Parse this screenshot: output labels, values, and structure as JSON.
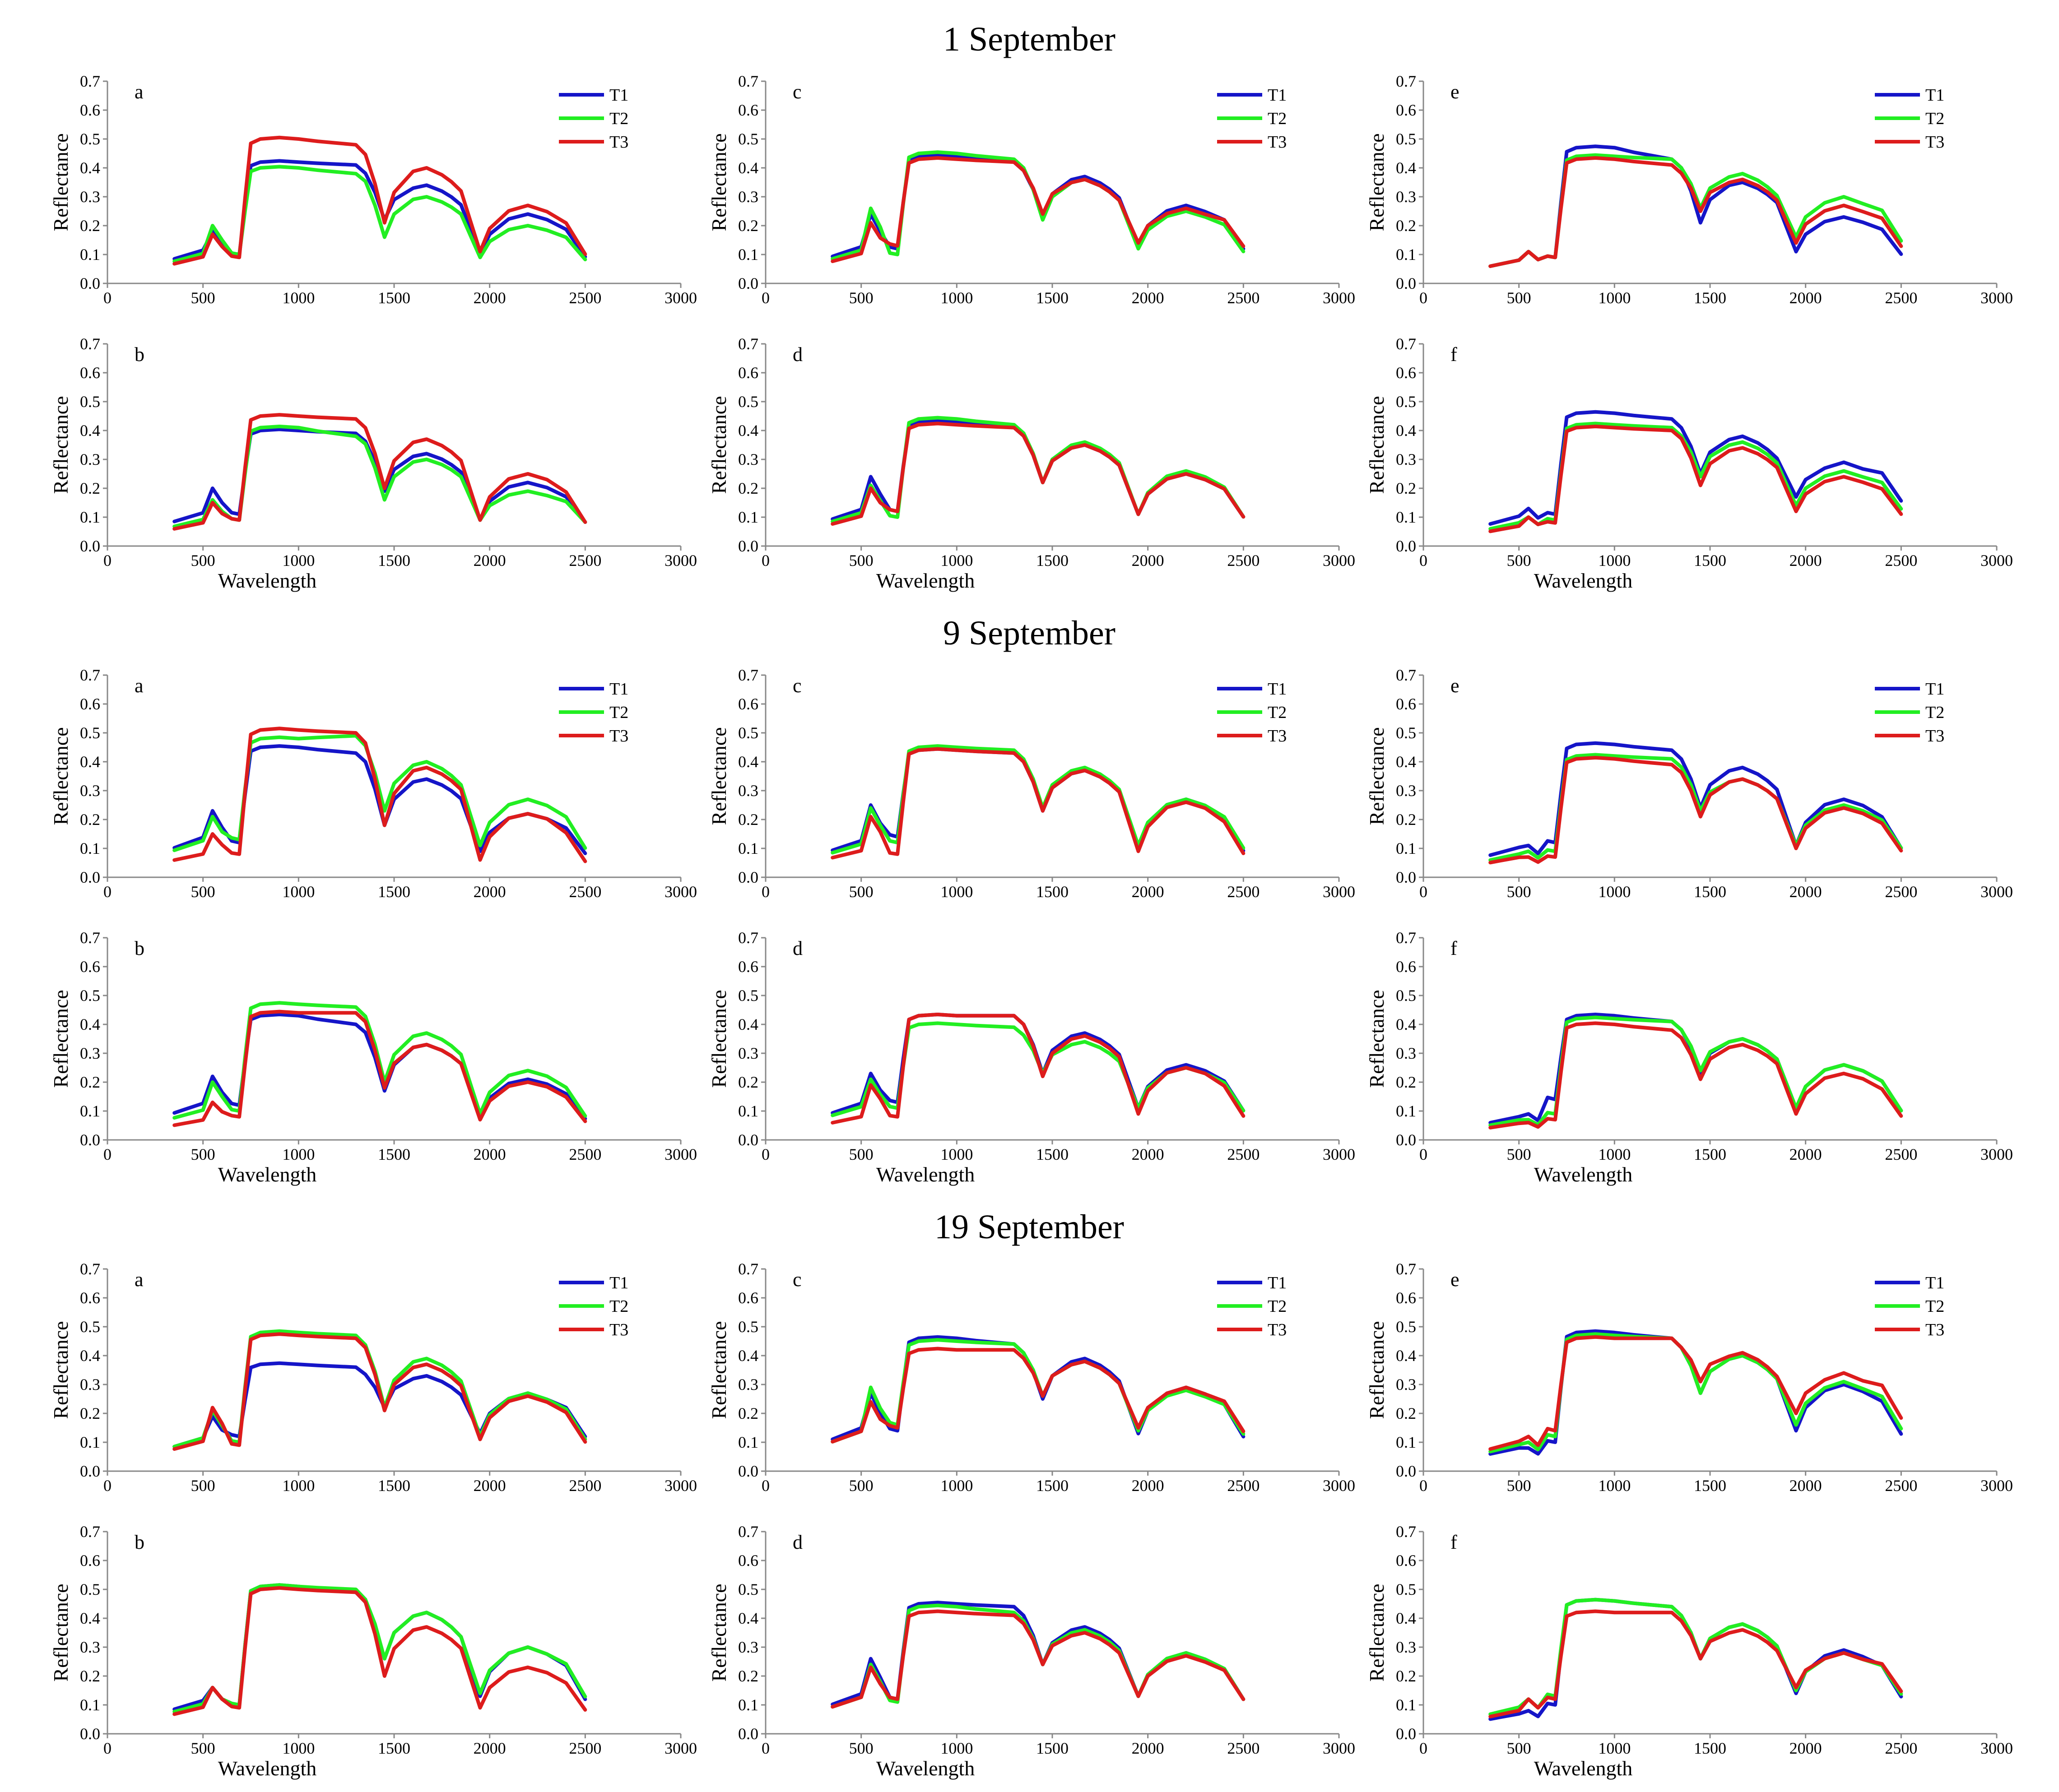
{
  "figure": {
    "groups": [
      {
        "title": "1 September"
      },
      {
        "title": "9 September"
      },
      {
        "title": "19 September"
      }
    ],
    "panel_letters_left_column": [
      "a",
      "b"
    ],
    "panel_letters_middle_column": [
      "c",
      "d"
    ],
    "panel_letters_right_column": [
      "e",
      "f"
    ],
    "legend": [
      "T1",
      "T2",
      "T3"
    ]
  },
  "colors": {
    "T1": "#1515c8",
    "T2": "#22ee22",
    "T3": "#dd1c1c",
    "axis": "#888888"
  },
  "chart_data": {
    "type": "line",
    "series_names": [
      "T1",
      "T2",
      "T3"
    ],
    "x": [
      350,
      400,
      500,
      550,
      600,
      650,
      690,
      720,
      750,
      800,
      900,
      1000,
      1100,
      1200,
      1300,
      1350,
      1400,
      1450,
      1500,
      1600,
      1670,
      1750,
      1800,
      1850,
      1900,
      1950,
      2000,
      2100,
      2200,
      2300,
      2400,
      2500
    ],
    "xlabel": "Wavelength",
    "ylabel": "Reflectance",
    "xlim": [
      0,
      3000
    ],
    "ylim": [
      0,
      0.7
    ],
    "xticks": [
      0,
      500,
      1000,
      1500,
      2000,
      2500,
      3000
    ],
    "yticks": [
      0.0,
      0.1,
      0.2,
      0.3,
      0.4,
      0.5,
      0.6,
      0.7
    ],
    "xtick_labels": [
      "0",
      "500",
      "1000",
      "1500",
      "2000",
      "2500",
      "3000"
    ],
    "ytick_labels": [
      "0.0",
      "0.1",
      "0.2",
      "0.3",
      "0.4",
      "0.5",
      "0.6",
      "0.7"
    ],
    "panels": [
      {
        "group": "1 September",
        "label": "a",
        "series": [
          {
            "name": "T1",
            "vis": 0.1,
            "green": 0.18,
            "red": 0.1,
            "nir": 0.42,
            "nir_end": 0.41,
            "swir1": 0.34,
            "swir2": 0.24,
            "dip1": 0.22,
            "dip2": 0.1
          },
          {
            "name": "T2",
            "vis": 0.09,
            "green": 0.2,
            "red": 0.1,
            "nir": 0.4,
            "nir_end": 0.38,
            "swir1": 0.3,
            "swir2": 0.2,
            "dip1": 0.16,
            "dip2": 0.09
          },
          {
            "name": "T3",
            "vis": 0.08,
            "green": 0.17,
            "red": 0.09,
            "nir": 0.5,
            "nir_end": 0.48,
            "swir1": 0.4,
            "swir2": 0.27,
            "dip1": 0.21,
            "dip2": 0.11
          }
        ]
      },
      {
        "group": "1 September",
        "label": "b",
        "series": [
          {
            "name": "T1",
            "vis": 0.1,
            "green": 0.2,
            "red": 0.11,
            "nir": 0.4,
            "nir_end": 0.39,
            "swir1": 0.32,
            "swir2": 0.22,
            "dip1": 0.19,
            "dip2": 0.09
          },
          {
            "name": "T2",
            "vis": 0.08,
            "green": 0.16,
            "red": 0.09,
            "nir": 0.41,
            "nir_end": 0.38,
            "swir1": 0.3,
            "swir2": 0.19,
            "dip1": 0.16,
            "dip2": 0.09
          },
          {
            "name": "T3",
            "vis": 0.07,
            "green": 0.15,
            "red": 0.09,
            "nir": 0.45,
            "nir_end": 0.44,
            "swir1": 0.37,
            "swir2": 0.25,
            "dip1": 0.2,
            "dip2": 0.09
          }
        ]
      },
      {
        "group": "1 September",
        "label": "c",
        "series": [
          {
            "name": "T1",
            "vis": 0.11,
            "green": 0.24,
            "red": 0.12,
            "nir": 0.44,
            "nir_end": 0.42,
            "swir1": 0.37,
            "swir2": 0.27,
            "dip1": 0.23,
            "dip2": 0.13
          },
          {
            "name": "T2",
            "vis": 0.1,
            "green": 0.26,
            "red": 0.1,
            "nir": 0.45,
            "nir_end": 0.43,
            "swir1": 0.36,
            "swir2": 0.25,
            "dip1": 0.22,
            "dip2": 0.12
          },
          {
            "name": "T3",
            "vis": 0.09,
            "green": 0.21,
            "red": 0.13,
            "nir": 0.43,
            "nir_end": 0.42,
            "swir1": 0.36,
            "swir2": 0.26,
            "dip1": 0.24,
            "dip2": 0.14
          }
        ]
      },
      {
        "group": "1 September",
        "label": "d",
        "series": [
          {
            "name": "T1",
            "vis": 0.11,
            "green": 0.24,
            "red": 0.12,
            "nir": 0.43,
            "nir_end": 0.41,
            "swir1": 0.35,
            "swir2": 0.25,
            "dip1": 0.22,
            "dip2": 0.11
          },
          {
            "name": "T2",
            "vis": 0.1,
            "green": 0.21,
            "red": 0.1,
            "nir": 0.44,
            "nir_end": 0.42,
            "swir1": 0.36,
            "swir2": 0.26,
            "dip1": 0.22,
            "dip2": 0.11
          },
          {
            "name": "T3",
            "vis": 0.09,
            "green": 0.2,
            "red": 0.12,
            "nir": 0.42,
            "nir_end": 0.41,
            "swir1": 0.35,
            "swir2": 0.25,
            "dip1": 0.22,
            "dip2": 0.11
          }
        ]
      },
      {
        "group": "1 September",
        "label": "e",
        "series": [
          {
            "name": "T1",
            "vis": 0.07,
            "green": 0.11,
            "red": 0.09,
            "nir": 0.47,
            "nir_end": 0.43,
            "swir1": 0.35,
            "swir2": 0.23,
            "dip1": 0.21,
            "dip2": 0.11
          },
          {
            "name": "T2",
            "vis": 0.07,
            "green": 0.11,
            "red": 0.09,
            "nir": 0.44,
            "nir_end": 0.43,
            "swir1": 0.38,
            "swir2": 0.3,
            "dip1": 0.26,
            "dip2": 0.16
          },
          {
            "name": "T3",
            "vis": 0.07,
            "green": 0.11,
            "red": 0.09,
            "nir": 0.43,
            "nir_end": 0.41,
            "swir1": 0.36,
            "swir2": 0.27,
            "dip1": 0.25,
            "dip2": 0.14
          }
        ]
      },
      {
        "group": "1 September",
        "label": "f",
        "series": [
          {
            "name": "T1",
            "vis": 0.09,
            "green": 0.13,
            "red": 0.11,
            "nir": 0.46,
            "nir_end": 0.44,
            "swir1": 0.38,
            "swir2": 0.29,
            "dip1": 0.25,
            "dip2": 0.17
          },
          {
            "name": "T2",
            "vis": 0.07,
            "green": 0.1,
            "red": 0.09,
            "nir": 0.42,
            "nir_end": 0.41,
            "swir1": 0.36,
            "swir2": 0.26,
            "dip1": 0.24,
            "dip2": 0.14
          },
          {
            "name": "T3",
            "vis": 0.06,
            "green": 0.1,
            "red": 0.08,
            "nir": 0.41,
            "nir_end": 0.4,
            "swir1": 0.34,
            "swir2": 0.24,
            "dip1": 0.21,
            "dip2": 0.12
          }
        ]
      },
      {
        "group": "9 September",
        "label": "a",
        "series": [
          {
            "name": "T1",
            "vis": 0.12,
            "green": 0.23,
            "red": 0.12,
            "nir": 0.45,
            "nir_end": 0.43,
            "swir1": 0.34,
            "swir2": 0.22,
            "dip1": 0.18,
            "dip2": 0.09
          },
          {
            "name": "T2",
            "vis": 0.11,
            "green": 0.21,
            "red": 0.13,
            "nir": 0.48,
            "nir_end": 0.49,
            "swir1": 0.4,
            "swir2": 0.27,
            "dip1": 0.23,
            "dip2": 0.11
          },
          {
            "name": "T3",
            "vis": 0.07,
            "green": 0.15,
            "red": 0.08,
            "nir": 0.51,
            "nir_end": 0.5,
            "swir1": 0.38,
            "swir2": 0.22,
            "dip1": 0.18,
            "dip2": 0.06
          }
        ]
      },
      {
        "group": "9 September",
        "label": "b",
        "series": [
          {
            "name": "T1",
            "vis": 0.11,
            "green": 0.22,
            "red": 0.12,
            "nir": 0.43,
            "nir_end": 0.4,
            "swir1": 0.33,
            "swir2": 0.21,
            "dip1": 0.17,
            "dip2": 0.08
          },
          {
            "name": "T2",
            "vis": 0.09,
            "green": 0.2,
            "red": 0.1,
            "nir": 0.47,
            "nir_end": 0.46,
            "swir1": 0.37,
            "swir2": 0.24,
            "dip1": 0.2,
            "dip2": 0.09
          },
          {
            "name": "T3",
            "vis": 0.06,
            "green": 0.13,
            "red": 0.08,
            "nir": 0.44,
            "nir_end": 0.44,
            "swir1": 0.33,
            "swir2": 0.2,
            "dip1": 0.18,
            "dip2": 0.07
          }
        ]
      },
      {
        "group": "9 September",
        "label": "c",
        "series": [
          {
            "name": "T1",
            "vis": 0.11,
            "green": 0.25,
            "red": 0.14,
            "nir": 0.44,
            "nir_end": 0.43,
            "swir1": 0.37,
            "swir2": 0.27,
            "dip1": 0.23,
            "dip2": 0.1
          },
          {
            "name": "T2",
            "vis": 0.1,
            "green": 0.24,
            "red": 0.12,
            "nir": 0.45,
            "nir_end": 0.44,
            "swir1": 0.38,
            "swir2": 0.27,
            "dip1": 0.24,
            "dip2": 0.11
          },
          {
            "name": "T3",
            "vis": 0.08,
            "green": 0.21,
            "red": 0.08,
            "nir": 0.44,
            "nir_end": 0.43,
            "swir1": 0.37,
            "swir2": 0.26,
            "dip1": 0.23,
            "dip2": 0.09
          }
        ]
      },
      {
        "group": "9 September",
        "label": "d",
        "series": [
          {
            "name": "T1",
            "vis": 0.11,
            "green": 0.23,
            "red": 0.13,
            "nir": 0.43,
            "nir_end": 0.43,
            "swir1": 0.37,
            "swir2": 0.26,
            "dip1": 0.23,
            "dip2": 0.11
          },
          {
            "name": "T2",
            "vis": 0.1,
            "green": 0.21,
            "red": 0.11,
            "nir": 0.4,
            "nir_end": 0.39,
            "swir1": 0.34,
            "swir2": 0.25,
            "dip1": 0.23,
            "dip2": 0.11
          },
          {
            "name": "T3",
            "vis": 0.07,
            "green": 0.19,
            "red": 0.08,
            "nir": 0.43,
            "nir_end": 0.43,
            "swir1": 0.36,
            "swir2": 0.25,
            "dip1": 0.22,
            "dip2": 0.09
          }
        ]
      },
      {
        "group": "9 September",
        "label": "e",
        "series": [
          {
            "name": "T1",
            "vis": 0.09,
            "green": 0.11,
            "red": 0.12,
            "nir": 0.46,
            "nir_end": 0.44,
            "swir1": 0.38,
            "swir2": 0.27,
            "dip1": 0.24,
            "dip2": 0.11
          },
          {
            "name": "T2",
            "vis": 0.07,
            "green": 0.09,
            "red": 0.09,
            "nir": 0.42,
            "nir_end": 0.41,
            "swir1": 0.34,
            "swir2": 0.25,
            "dip1": 0.23,
            "dip2": 0.11
          },
          {
            "name": "T3",
            "vis": 0.06,
            "green": 0.07,
            "red": 0.07,
            "nir": 0.41,
            "nir_end": 0.39,
            "swir1": 0.34,
            "swir2": 0.24,
            "dip1": 0.21,
            "dip2": 0.1
          }
        ]
      },
      {
        "group": "9 September",
        "label": "f",
        "series": [
          {
            "name": "T1",
            "vis": 0.07,
            "green": 0.09,
            "red": 0.14,
            "nir": 0.43,
            "nir_end": 0.41,
            "swir1": 0.35,
            "swir2": 0.26,
            "dip1": 0.23,
            "dip2": 0.11
          },
          {
            "name": "T2",
            "vis": 0.06,
            "green": 0.07,
            "red": 0.09,
            "nir": 0.42,
            "nir_end": 0.41,
            "swir1": 0.35,
            "swir2": 0.26,
            "dip1": 0.24,
            "dip2": 0.11
          },
          {
            "name": "T3",
            "vis": 0.05,
            "green": 0.06,
            "red": 0.07,
            "nir": 0.4,
            "nir_end": 0.38,
            "swir1": 0.33,
            "swir2": 0.23,
            "dip1": 0.21,
            "dip2": 0.09
          }
        ]
      },
      {
        "group": "19 September",
        "label": "a",
        "series": [
          {
            "name": "T1",
            "vis": 0.1,
            "green": 0.19,
            "red": 0.12,
            "nir": 0.37,
            "nir_end": 0.36,
            "swir1": 0.33,
            "swir2": 0.27,
            "dip1": 0.22,
            "dip2": 0.13
          },
          {
            "name": "T2",
            "vis": 0.1,
            "green": 0.21,
            "red": 0.1,
            "nir": 0.48,
            "nir_end": 0.47,
            "swir1": 0.39,
            "swir2": 0.27,
            "dip1": 0.22,
            "dip2": 0.12
          },
          {
            "name": "T3",
            "vis": 0.09,
            "green": 0.22,
            "red": 0.09,
            "nir": 0.47,
            "nir_end": 0.46,
            "swir1": 0.37,
            "swir2": 0.26,
            "dip1": 0.21,
            "dip2": 0.11
          }
        ]
      },
      {
        "group": "19 September",
        "label": "b",
        "series": [
          {
            "name": "T1",
            "vis": 0.1,
            "green": 0.16,
            "red": 0.1,
            "nir": 0.51,
            "nir_end": 0.49,
            "swir1": 0.42,
            "swir2": 0.3,
            "dip1": 0.26,
            "dip2": 0.13
          },
          {
            "name": "T2",
            "vis": 0.09,
            "green": 0.16,
            "red": 0.1,
            "nir": 0.51,
            "nir_end": 0.5,
            "swir1": 0.42,
            "swir2": 0.3,
            "dip1": 0.26,
            "dip2": 0.14
          },
          {
            "name": "T3",
            "vis": 0.08,
            "green": 0.16,
            "red": 0.09,
            "nir": 0.5,
            "nir_end": 0.49,
            "swir1": 0.37,
            "swir2": 0.23,
            "dip1": 0.2,
            "dip2": 0.09
          }
        ]
      },
      {
        "group": "19 September",
        "label": "c",
        "series": [
          {
            "name": "T1",
            "vis": 0.13,
            "green": 0.27,
            "red": 0.14,
            "nir": 0.46,
            "nir_end": 0.44,
            "swir1": 0.39,
            "swir2": 0.29,
            "dip1": 0.25,
            "dip2": 0.13
          },
          {
            "name": "T2",
            "vis": 0.12,
            "green": 0.29,
            "red": 0.16,
            "nir": 0.45,
            "nir_end": 0.44,
            "swir1": 0.38,
            "swir2": 0.28,
            "dip1": 0.26,
            "dip2": 0.14
          },
          {
            "name": "T3",
            "vis": 0.12,
            "green": 0.24,
            "red": 0.15,
            "nir": 0.42,
            "nir_end": 0.42,
            "swir1": 0.38,
            "swir2": 0.29,
            "dip1": 0.26,
            "dip2": 0.15
          }
        ]
      },
      {
        "group": "19 September",
        "label": "d",
        "series": [
          {
            "name": "T1",
            "vis": 0.12,
            "green": 0.26,
            "red": 0.12,
            "nir": 0.45,
            "nir_end": 0.44,
            "swir1": 0.37,
            "swir2": 0.28,
            "dip1": 0.24,
            "dip2": 0.13
          },
          {
            "name": "T2",
            "vis": 0.11,
            "green": 0.24,
            "red": 0.11,
            "nir": 0.44,
            "nir_end": 0.42,
            "swir1": 0.36,
            "swir2": 0.28,
            "dip1": 0.24,
            "dip2": 0.13
          },
          {
            "name": "T3",
            "vis": 0.11,
            "green": 0.23,
            "red": 0.12,
            "nir": 0.42,
            "nir_end": 0.41,
            "swir1": 0.35,
            "swir2": 0.27,
            "dip1": 0.24,
            "dip2": 0.13
          }
        ]
      },
      {
        "group": "19 September",
        "label": "e",
        "series": [
          {
            "name": "T1",
            "vis": 0.07,
            "green": 0.08,
            "red": 0.1,
            "nir": 0.48,
            "nir_end": 0.46,
            "swir1": 0.4,
            "swir2": 0.3,
            "dip1": 0.27,
            "dip2": 0.14
          },
          {
            "name": "T2",
            "vis": 0.08,
            "green": 0.1,
            "red": 0.12,
            "nir": 0.47,
            "nir_end": 0.46,
            "swir1": 0.4,
            "swir2": 0.31,
            "dip1": 0.27,
            "dip2": 0.16
          },
          {
            "name": "T3",
            "vis": 0.09,
            "green": 0.12,
            "red": 0.14,
            "nir": 0.46,
            "nir_end": 0.46,
            "swir1": 0.41,
            "swir2": 0.34,
            "dip1": 0.31,
            "dip2": 0.2
          }
        ]
      },
      {
        "group": "19 September",
        "label": "f",
        "series": [
          {
            "name": "T1",
            "vis": 0.06,
            "green": 0.08,
            "red": 0.1,
            "nir": 0.46,
            "nir_end": 0.44,
            "swir1": 0.38,
            "swir2": 0.29,
            "dip1": 0.26,
            "dip2": 0.14
          },
          {
            "name": "T2",
            "vis": 0.08,
            "green": 0.12,
            "red": 0.13,
            "nir": 0.46,
            "nir_end": 0.44,
            "swir1": 0.38,
            "swir2": 0.28,
            "dip1": 0.26,
            "dip2": 0.15
          },
          {
            "name": "T3",
            "vis": 0.07,
            "green": 0.12,
            "red": 0.12,
            "nir": 0.42,
            "nir_end": 0.42,
            "swir1": 0.36,
            "swir2": 0.28,
            "dip1": 0.26,
            "dip2": 0.16
          }
        ]
      }
    ]
  }
}
